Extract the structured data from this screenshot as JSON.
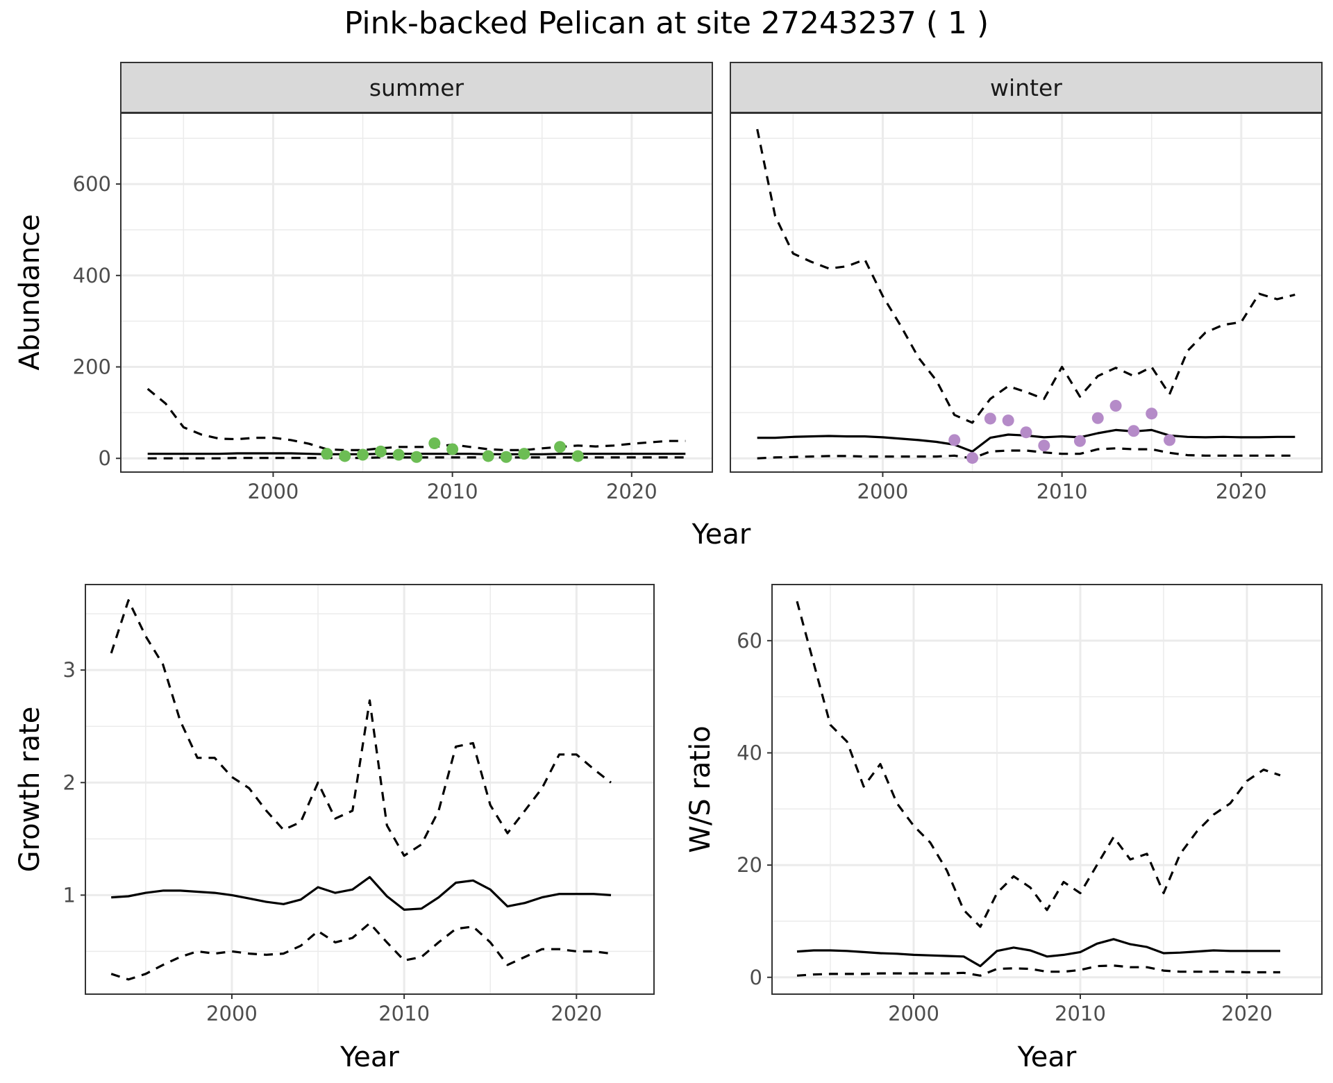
{
  "title": "Pink-backed Pelican at site 27243237 ( 1 )",
  "colors": {
    "summer_points": "#6cbd54",
    "winter_points": "#b58bc8",
    "lines": "#000000"
  },
  "chart_data": [
    {
      "name": "abundance",
      "type": "line",
      "xlabel": "Year",
      "ylabel": "Abundance",
      "xlim": [
        1991.5,
        2024.5
      ],
      "ylim": [
        -30,
        755
      ],
      "xticks": [
        2000,
        2010,
        2020
      ],
      "yticks": [
        0,
        200,
        400,
        600
      ],
      "panels": [
        {
          "strip": "summer",
          "x": [
            1993,
            1994,
            1995,
            1996,
            1997,
            1998,
            1999,
            2000,
            2001,
            2002,
            2003,
            2004,
            2005,
            2006,
            2007,
            2008,
            2009,
            2010,
            2011,
            2012,
            2013,
            2014,
            2015,
            2016,
            2017,
            2018,
            2019,
            2020,
            2021,
            2022,
            2023
          ],
          "mean": [
            10,
            10,
            10,
            10,
            10,
            11,
            11,
            11,
            11,
            10,
            9,
            9,
            9,
            10,
            10,
            10,
            10,
            10,
            10,
            9,
            9,
            9,
            9,
            10,
            10,
            10,
            10,
            10,
            10,
            10,
            10
          ],
          "upper": [
            152,
            120,
            68,
            52,
            43,
            42,
            45,
            45,
            40,
            32,
            20,
            18,
            18,
            22,
            25,
            25,
            25,
            30,
            25,
            20,
            18,
            18,
            22,
            25,
            28,
            26,
            28,
            32,
            35,
            38,
            38
          ],
          "lower": [
            0,
            0,
            0,
            0,
            0,
            1,
            1,
            1,
            1,
            1,
            1,
            1,
            1,
            2,
            2,
            2,
            2,
            2,
            2,
            2,
            2,
            2,
            2,
            2,
            2,
            2,
            2,
            2,
            2,
            2,
            2
          ],
          "points": {
            "x": [
              2003,
              2004,
              2005,
              2006,
              2007,
              2008,
              2009,
              2010,
              2012,
              2013,
              2014,
              2016,
              2017
            ],
            "y": [
              10,
              5,
              8,
              15,
              8,
              3,
              33,
              20,
              5,
              3,
              10,
              25,
              5
            ]
          }
        },
        {
          "strip": "winter",
          "x": [
            1993,
            1994,
            1995,
            1996,
            1997,
            1998,
            1999,
            2000,
            2001,
            2002,
            2003,
            2004,
            2005,
            2006,
            2007,
            2008,
            2009,
            2010,
            2011,
            2012,
            2013,
            2014,
            2015,
            2016,
            2017,
            2018,
            2019,
            2020,
            2021,
            2022,
            2023
          ],
          "mean": [
            45,
            45,
            47,
            48,
            49,
            48,
            48,
            46,
            43,
            40,
            36,
            30,
            15,
            45,
            52,
            50,
            46,
            48,
            46,
            55,
            62,
            59,
            62,
            50,
            47,
            46,
            47,
            46,
            46,
            47,
            47
          ],
          "upper": [
            720,
            530,
            448,
            430,
            415,
            420,
            435,
            355,
            290,
            220,
            170,
            95,
            78,
            130,
            158,
            145,
            130,
            200,
            135,
            180,
            198,
            180,
            200,
            140,
            235,
            275,
            292,
            298,
            360,
            348,
            358
          ],
          "lower": [
            0,
            2,
            3,
            4,
            5,
            5,
            4,
            4,
            4,
            4,
            4,
            6,
            0,
            15,
            17,
            17,
            13,
            10,
            10,
            20,
            22,
            20,
            20,
            12,
            7,
            6,
            6,
            6,
            6,
            6,
            6
          ],
          "points": {
            "x": [
              2004,
              2005,
              2006,
              2007,
              2008,
              2009,
              2011,
              2012,
              2013,
              2014,
              2015,
              2016
            ],
            "y": [
              40,
              1,
              87,
              83,
              57,
              28,
              38,
              88,
              115,
              60,
              98,
              40
            ]
          }
        }
      ]
    },
    {
      "name": "growth_rate",
      "type": "line",
      "xlabel": "Year",
      "ylabel": "Growth rate",
      "xlim": [
        1991.5,
        2024.5
      ],
      "ylim": [
        0.12,
        3.76
      ],
      "xticks": [
        2000,
        2010,
        2020
      ],
      "yticks": [
        1,
        2,
        3
      ],
      "x": [
        1993,
        1994,
        1995,
        1996,
        1997,
        1998,
        1999,
        2000,
        2001,
        2002,
        2003,
        2004,
        2005,
        2006,
        2007,
        2008,
        2009,
        2010,
        2011,
        2012,
        2013,
        2014,
        2015,
        2016,
        2017,
        2018,
        2019,
        2020,
        2021,
        2022
      ],
      "mean": [
        0.98,
        0.99,
        1.02,
        1.04,
        1.04,
        1.03,
        1.02,
        1.0,
        0.97,
        0.94,
        0.92,
        0.96,
        1.07,
        1.02,
        1.05,
        1.16,
        0.99,
        0.87,
        0.88,
        0.98,
        1.11,
        1.13,
        1.05,
        0.9,
        0.93,
        0.98,
        1.01,
        1.01,
        1.01,
        1.0
      ],
      "upper": [
        3.15,
        3.62,
        3.3,
        3.05,
        2.55,
        2.22,
        2.22,
        2.05,
        1.95,
        1.75,
        1.58,
        1.65,
        2.0,
        1.68,
        1.75,
        2.73,
        1.62,
        1.35,
        1.45,
        1.75,
        2.32,
        2.35,
        1.8,
        1.55,
        1.75,
        1.95,
        2.25,
        2.25,
        2.12,
        2.0
      ],
      "lower": [
        0.3,
        0.25,
        0.3,
        0.38,
        0.45,
        0.5,
        0.48,
        0.5,
        0.48,
        0.47,
        0.48,
        0.55,
        0.68,
        0.58,
        0.62,
        0.75,
        0.58,
        0.42,
        0.45,
        0.58,
        0.7,
        0.72,
        0.58,
        0.38,
        0.45,
        0.52,
        0.52,
        0.5,
        0.5,
        0.48
      ]
    },
    {
      "name": "ws_ratio",
      "type": "line",
      "xlabel": "Year",
      "ylabel": "W/S ratio",
      "xlim": [
        1991.5,
        2024.5
      ],
      "ylim": [
        -3,
        70
      ],
      "xticks": [
        2000,
        2010,
        2020
      ],
      "yticks": [
        0,
        20,
        40,
        60
      ],
      "x": [
        1993,
        1994,
        1995,
        1996,
        1997,
        1998,
        1999,
        2000,
        2001,
        2002,
        2003,
        2004,
        2005,
        2006,
        2007,
        2008,
        2009,
        2010,
        2011,
        2012,
        2013,
        2014,
        2015,
        2016,
        2017,
        2018,
        2019,
        2020,
        2021,
        2022
      ],
      "mean": [
        4.6,
        4.8,
        4.8,
        4.7,
        4.5,
        4.3,
        4.2,
        4.0,
        3.9,
        3.8,
        3.7,
        2.0,
        4.7,
        5.3,
        4.8,
        3.7,
        4.0,
        4.5,
        6.0,
        6.8,
        5.9,
        5.4,
        4.3,
        4.4,
        4.6,
        4.8,
        4.7,
        4.7,
        4.7,
        4.7
      ],
      "upper": [
        67,
        56,
        45,
        42,
        34,
        38,
        31,
        27,
        24,
        19,
        12,
        9,
        15,
        18,
        16,
        12,
        17,
        15,
        20,
        25,
        21,
        22,
        15,
        22,
        26,
        29,
        31,
        35,
        37,
        36
      ],
      "lower": [
        0.3,
        0.5,
        0.6,
        0.6,
        0.6,
        0.7,
        0.7,
        0.7,
        0.7,
        0.7,
        0.8,
        0.3,
        1.5,
        1.6,
        1.5,
        1.0,
        1.0,
        1.3,
        2.0,
        2.1,
        1.8,
        1.8,
        1.2,
        1.0,
        1.0,
        1.0,
        1.0,
        0.9,
        0.9,
        0.9
      ]
    }
  ]
}
